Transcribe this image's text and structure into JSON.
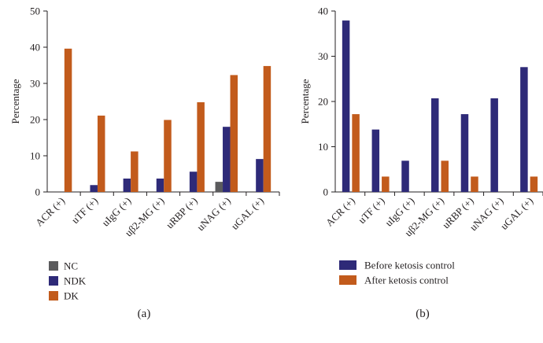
{
  "colors": {
    "NC": "#5b5b5d",
    "NDK": "#2e2a78",
    "DK": "#c25b1c",
    "Before ketosis control": "#2e2a78",
    "After ketosis control": "#c25b1c"
  },
  "chart_data": [
    {
      "type": "bar",
      "panel_label": "(a)",
      "ylabel": "Percentage",
      "ylim": [
        0,
        50
      ],
      "yticks": [
        0,
        10,
        20,
        30,
        40,
        50
      ],
      "categories": [
        "ACR (+)",
        "uTF (+)",
        "uIgG (+)",
        "uβ2-MG (+)",
        "uRBP (+)",
        "uNAG (+)",
        "uGAL (+)"
      ],
      "series": [
        {
          "name": "NC",
          "values": [
            0,
            0,
            0,
            0,
            0,
            2.8,
            0
          ]
        },
        {
          "name": "NDK",
          "values": [
            0,
            1.9,
            3.7,
            3.7,
            5.6,
            18.0,
            9.1
          ]
        },
        {
          "name": "DK",
          "values": [
            39.6,
            21.1,
            11.2,
            19.9,
            24.8,
            32.3,
            34.8
          ]
        }
      ],
      "legend": "bottom-left",
      "grid": false
    },
    {
      "type": "bar",
      "panel_label": "(b)",
      "ylabel": "Percentage",
      "ylim": [
        0,
        40
      ],
      "yticks": [
        0,
        10,
        20,
        30,
        40
      ],
      "categories": [
        "ACR (+)",
        "uTF (+)",
        "uIgG (+)",
        "uβ2-MG (+)",
        "uRBP (+)",
        "uNAG (+)",
        "uGAL (+)"
      ],
      "series": [
        {
          "name": "Before ketosis control",
          "values": [
            37.9,
            13.8,
            6.9,
            20.7,
            17.2,
            20.7,
            27.6
          ]
        },
        {
          "name": "After ketosis control",
          "values": [
            17.2,
            3.4,
            0,
            6.9,
            3.4,
            0,
            3.4
          ]
        }
      ],
      "legend": "bottom-left",
      "grid": false
    }
  ]
}
